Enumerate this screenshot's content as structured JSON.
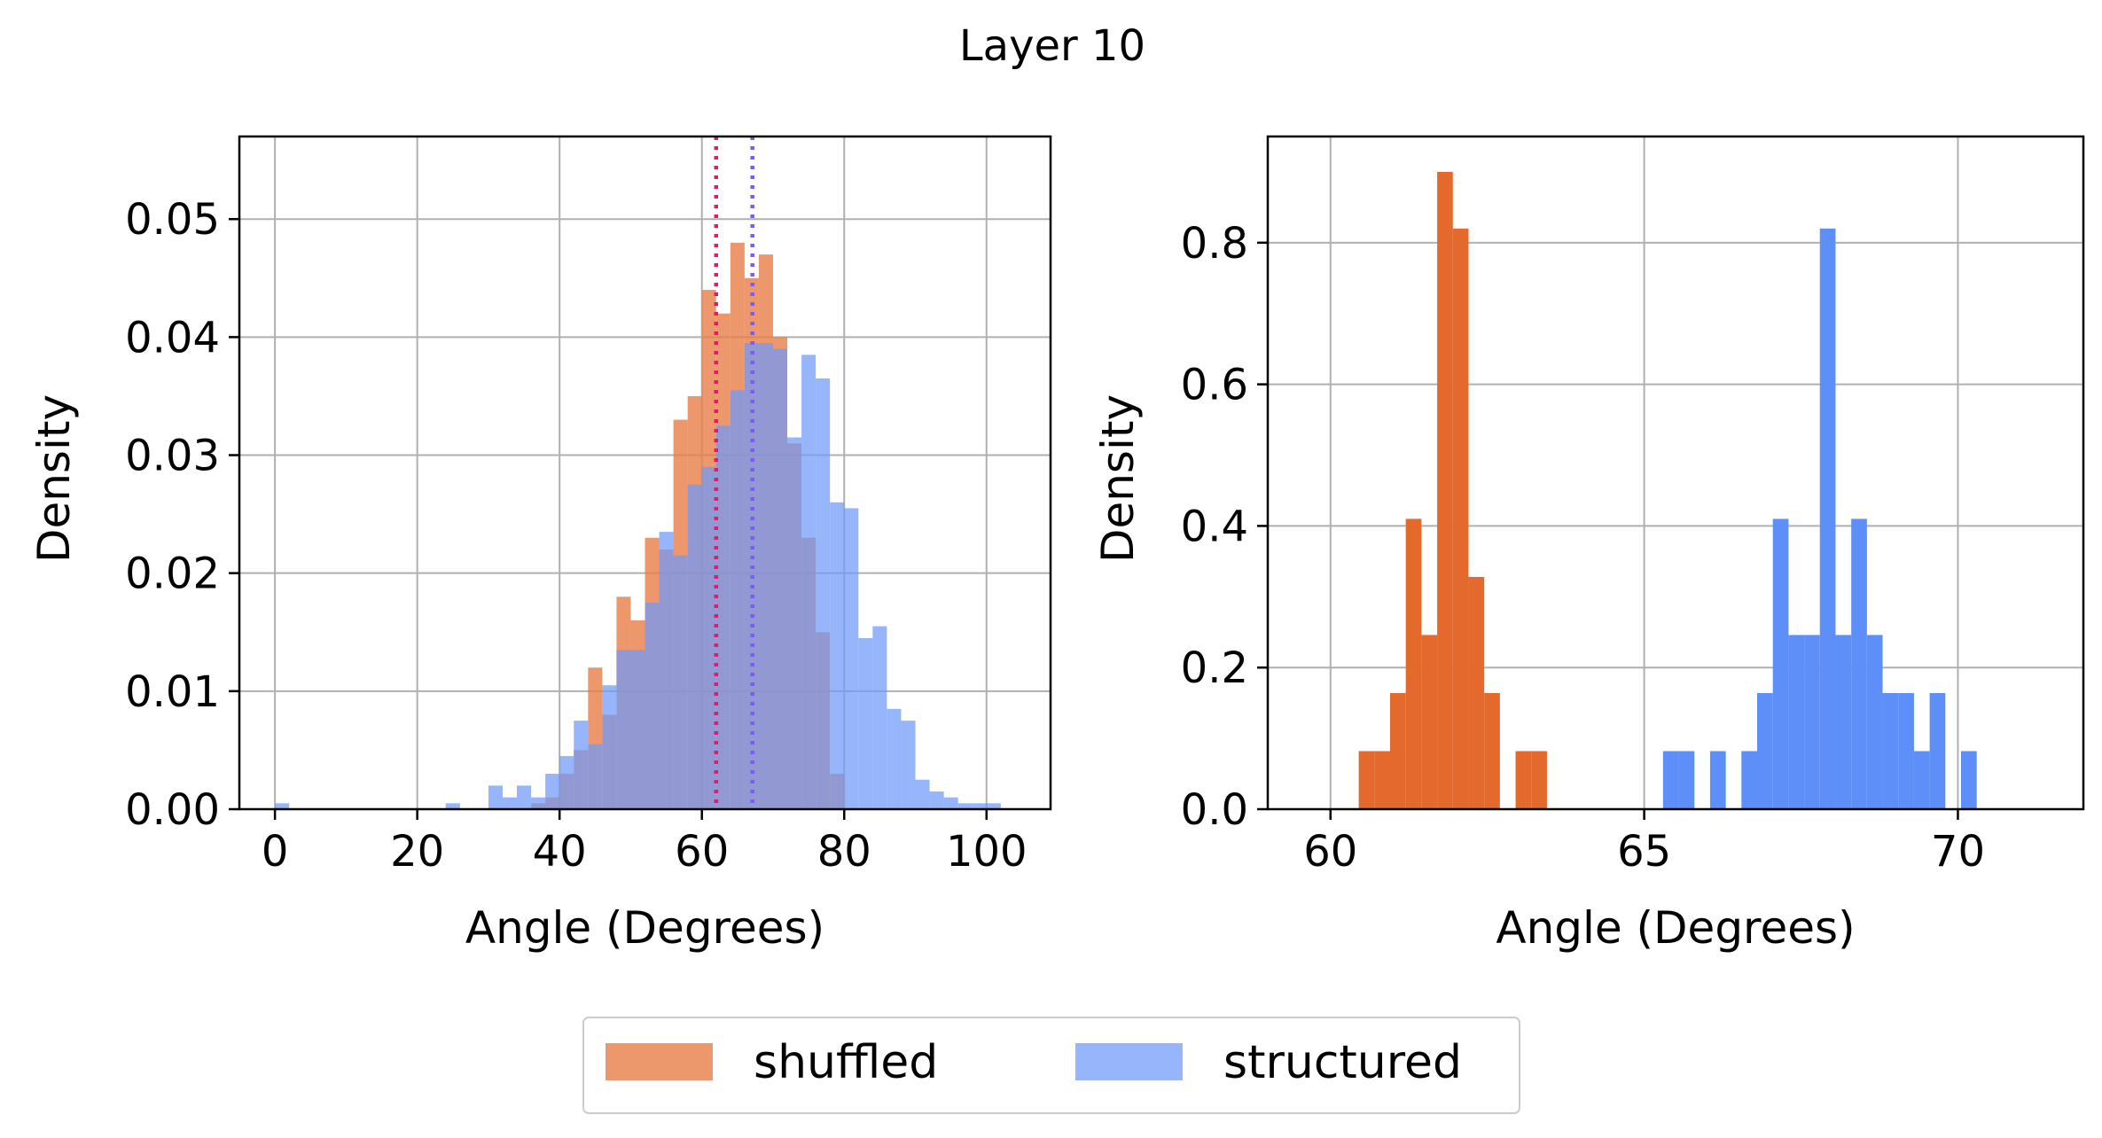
{
  "figure": {
    "title": "Layer 10",
    "legend": {
      "placement": "bottom-center",
      "entries": [
        {
          "label": "shuffled",
          "color": "#e87d48"
        },
        {
          "label": "structured",
          "color": "#6f98f8"
        }
      ]
    }
  },
  "chart_data": [
    {
      "type": "bar",
      "subtype": "histogram-overlay",
      "xlabel": "Angle (Degrees)",
      "ylabel": "Density",
      "xlim": [
        -5,
        109
      ],
      "ylim": [
        0,
        0.057
      ],
      "xticks": [
        0,
        20,
        40,
        60,
        80,
        100
      ],
      "yticks": [
        0.0,
        0.01,
        0.02,
        0.03,
        0.04,
        0.05
      ],
      "ytick_labels": [
        "0.00",
        "0.01",
        "0.02",
        "0.03",
        "0.04",
        "0.05"
      ],
      "grid": true,
      "bin_width": 2,
      "series": [
        {
          "name": "shuffled",
          "color": "#e87d48",
          "opacity": 0.8,
          "bins": [
            [
              36,
              0.0005
            ],
            [
              38,
              0.001
            ],
            [
              40,
              0.003
            ],
            [
              42,
              0.005
            ],
            [
              44,
              0.012
            ],
            [
              46,
              0.008
            ],
            [
              48,
              0.018
            ],
            [
              50,
              0.016
            ],
            [
              52,
              0.023
            ],
            [
              54,
              0.022
            ],
            [
              56,
              0.033
            ],
            [
              58,
              0.035
            ],
            [
              60,
              0.044
            ],
            [
              62,
              0.042
            ],
            [
              64,
              0.048
            ],
            [
              66,
              0.045
            ],
            [
              68,
              0.047
            ],
            [
              70,
              0.04
            ],
            [
              72,
              0.031
            ],
            [
              74,
              0.023
            ],
            [
              76,
              0.015
            ],
            [
              78,
              0.003
            ]
          ]
        },
        {
          "name": "structured",
          "color": "#6f98f8",
          "opacity": 0.72,
          "bins": [
            [
              0,
              0.0005
            ],
            [
              24,
              0.0005
            ],
            [
              30,
              0.002
            ],
            [
              32,
              0.001
            ],
            [
              34,
              0.002
            ],
            [
              36,
              0.001
            ],
            [
              38,
              0.003
            ],
            [
              40,
              0.0045
            ],
            [
              42,
              0.0075
            ],
            [
              44,
              0.0055
            ],
            [
              46,
              0.0105
            ],
            [
              48,
              0.0135
            ],
            [
              50,
              0.0135
            ],
            [
              52,
              0.0175
            ],
            [
              54,
              0.0235
            ],
            [
              56,
              0.0215
            ],
            [
              58,
              0.0275
            ],
            [
              60,
              0.029
            ],
            [
              62,
              0.0325
            ],
            [
              64,
              0.0355
            ],
            [
              66,
              0.0395
            ],
            [
              68,
              0.0395
            ],
            [
              70,
              0.039
            ],
            [
              72,
              0.0315
            ],
            [
              74,
              0.0385
            ],
            [
              76,
              0.0365
            ],
            [
              78,
              0.026
            ],
            [
              80,
              0.0255
            ],
            [
              82,
              0.0145
            ],
            [
              84,
              0.0155
            ],
            [
              86,
              0.0085
            ],
            [
              88,
              0.0075
            ],
            [
              90,
              0.0025
            ],
            [
              92,
              0.0015
            ],
            [
              94,
              0.001
            ],
            [
              96,
              0.0005
            ],
            [
              98,
              0.0005
            ],
            [
              100,
              0.0005
            ]
          ]
        }
      ],
      "mean_lines": [
        {
          "series": "shuffled",
          "x": 62.0,
          "color": "#e8176a",
          "style": "dotted"
        },
        {
          "series": "structured",
          "x": 67.1,
          "color": "#7a5cf0",
          "style": "dotted"
        }
      ]
    },
    {
      "type": "bar",
      "subtype": "histogram",
      "xlabel": "Angle (Degrees)",
      "ylabel": "Density",
      "xlim": [
        59.0,
        72.0
      ],
      "ylim": [
        0,
        0.95
      ],
      "xticks": [
        60,
        65,
        70
      ],
      "yticks": [
        0.0,
        0.2,
        0.4,
        0.6,
        0.8
      ],
      "ytick_labels": [
        "0.0",
        "0.2",
        "0.4",
        "0.6",
        "0.8"
      ],
      "grid": true,
      "bin_width": 0.25,
      "series": [
        {
          "name": "shuffled",
          "color": "#e4692d",
          "opacity": 1,
          "bins": [
            [
              60.45,
              0.082
            ],
            [
              60.7,
              0.082
            ],
            [
              60.95,
              0.164
            ],
            [
              61.2,
              0.41
            ],
            [
              61.45,
              0.246
            ],
            [
              61.7,
              0.9
            ],
            [
              61.95,
              0.82
            ],
            [
              62.2,
              0.328
            ],
            [
              62.45,
              0.164
            ],
            [
              62.7,
              0.0
            ],
            [
              62.95,
              0.082
            ],
            [
              63.2,
              0.082
            ]
          ]
        },
        {
          "name": "structured",
          "color": "#5e8ef7",
          "opacity": 1,
          "bins": [
            [
              65.3,
              0.082
            ],
            [
              65.55,
              0.082
            ],
            [
              65.8,
              0.0
            ],
            [
              66.05,
              0.082
            ],
            [
              66.3,
              0.0
            ],
            [
              66.55,
              0.082
            ],
            [
              66.8,
              0.164
            ],
            [
              67.05,
              0.41
            ],
            [
              67.3,
              0.246
            ],
            [
              67.55,
              0.246
            ],
            [
              67.8,
              0.82
            ],
            [
              68.05,
              0.246
            ],
            [
              68.3,
              0.41
            ],
            [
              68.55,
              0.246
            ],
            [
              68.8,
              0.164
            ],
            [
              69.05,
              0.164
            ],
            [
              69.3,
              0.082
            ],
            [
              69.55,
              0.164
            ],
            [
              69.8,
              0.0
            ],
            [
              70.05,
              0.082
            ]
          ]
        }
      ]
    }
  ]
}
